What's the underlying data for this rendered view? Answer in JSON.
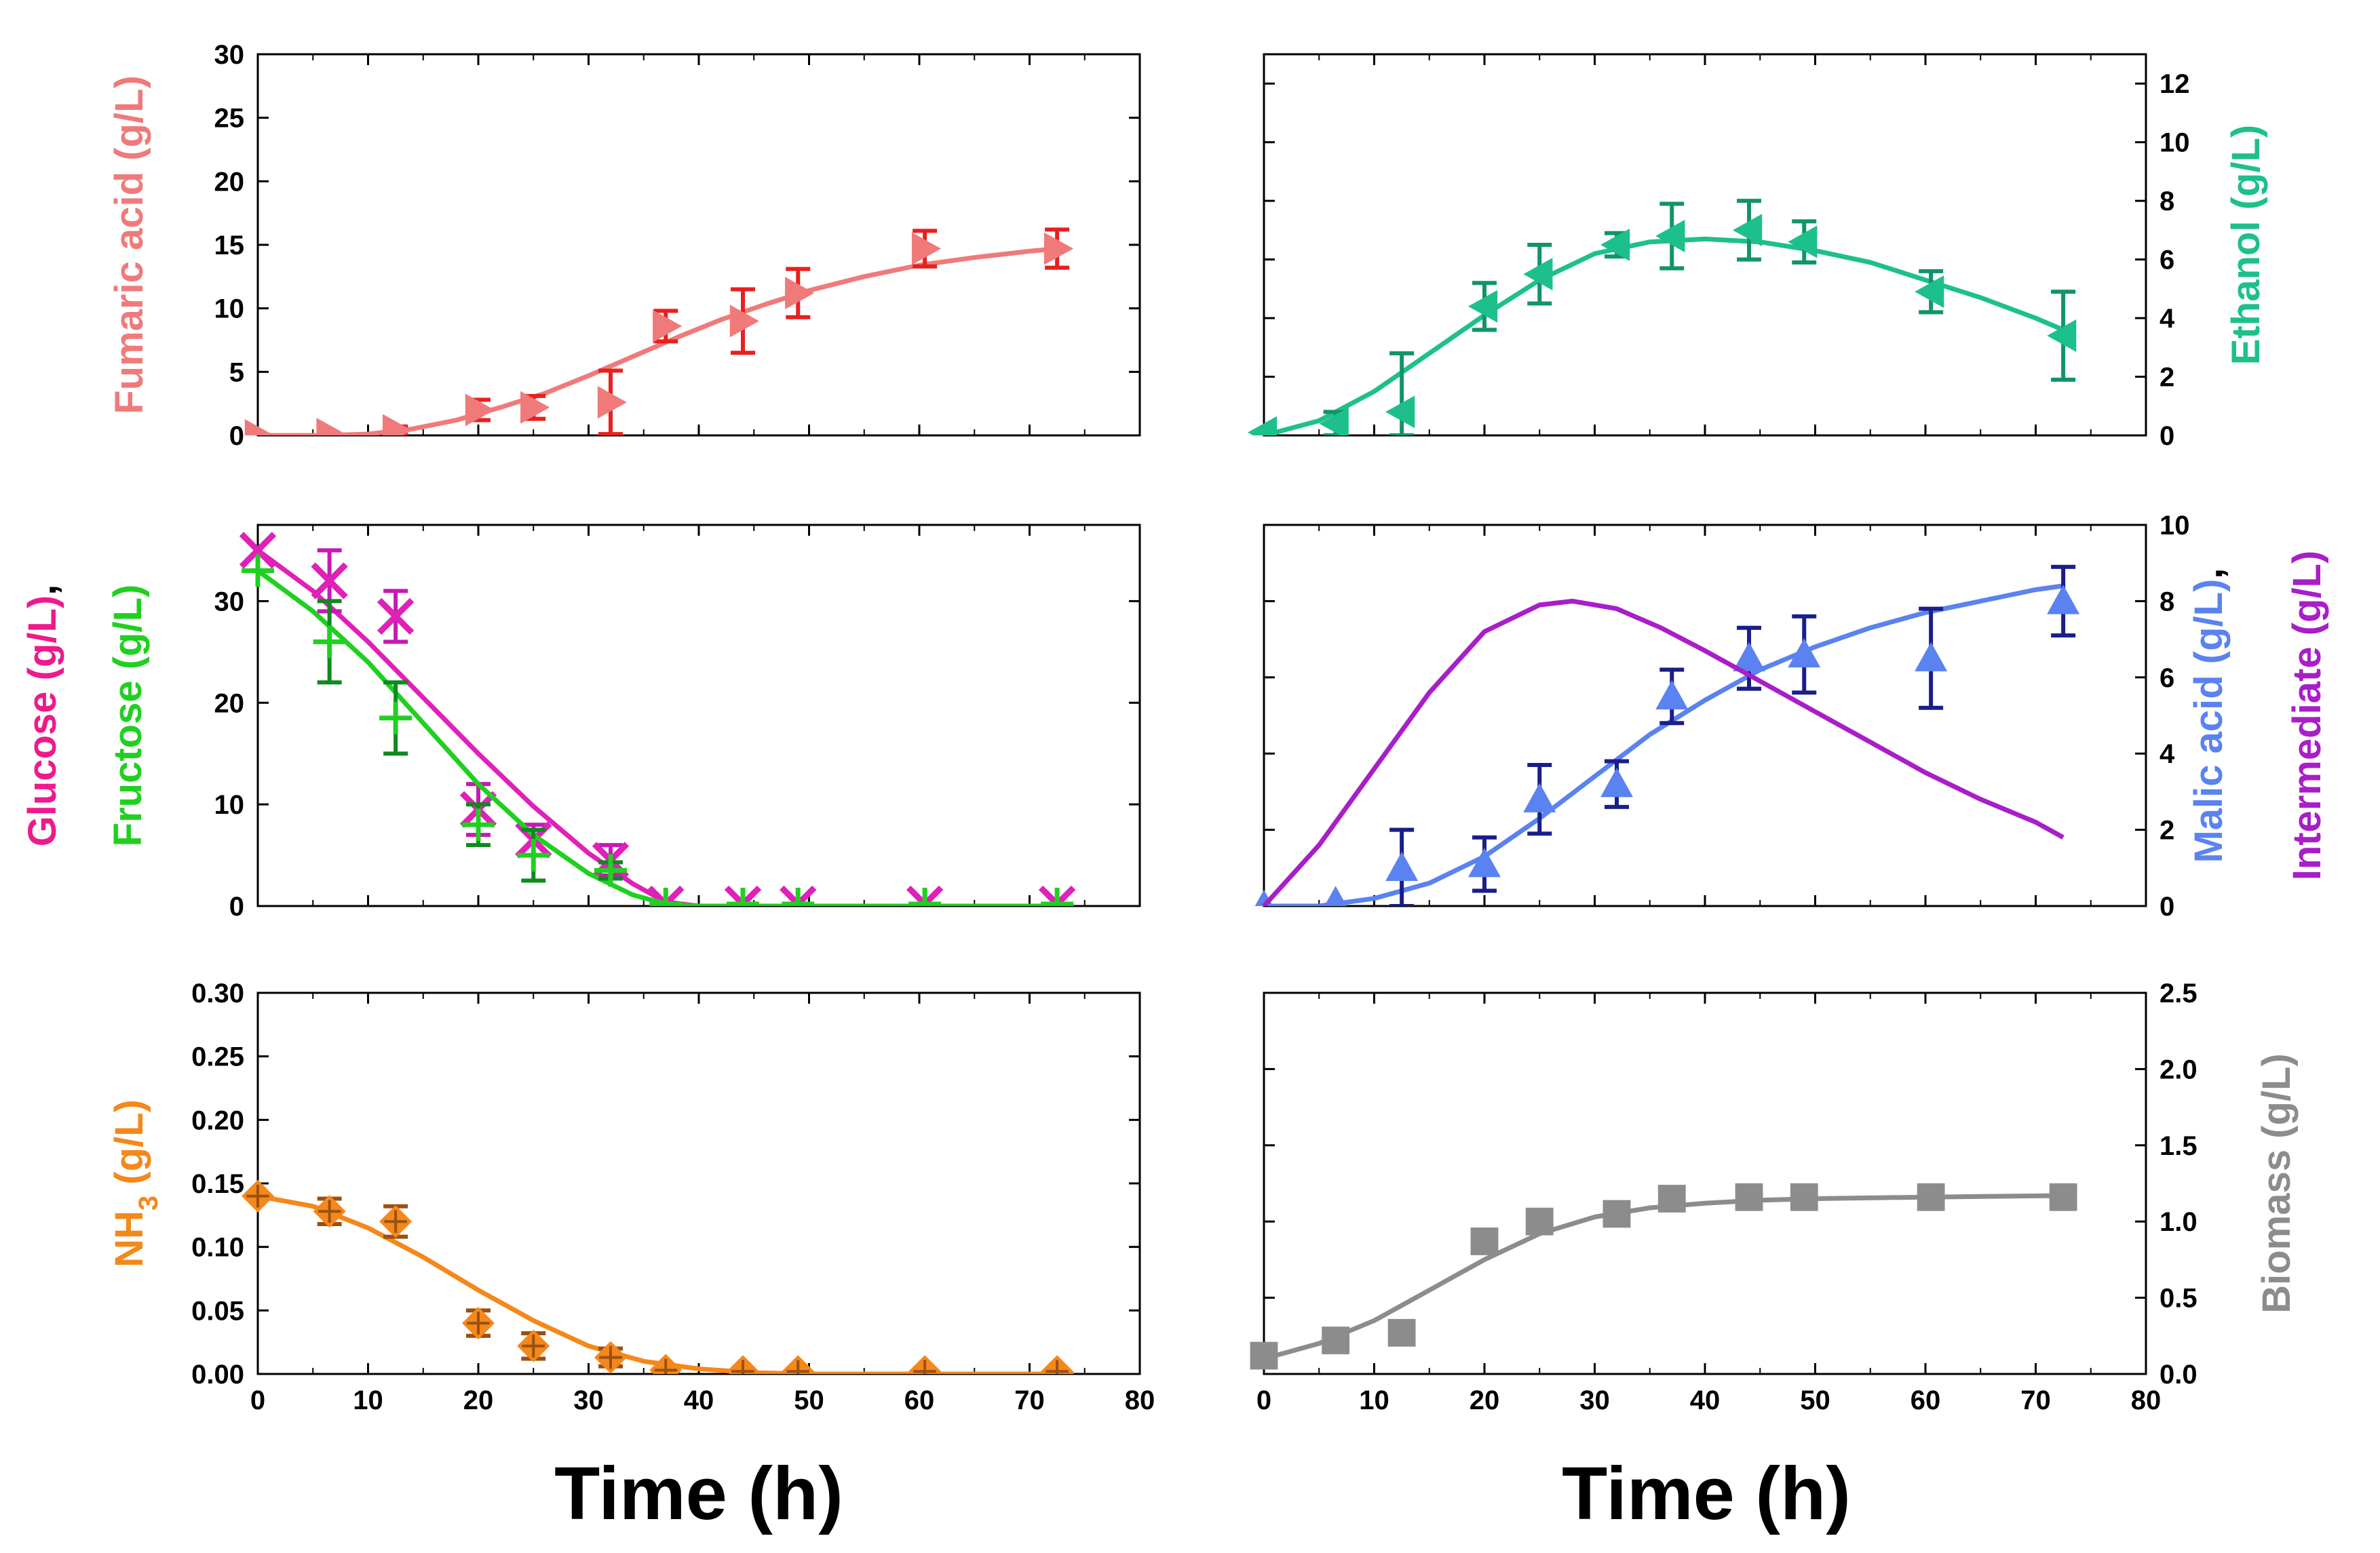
{
  "xlabel": "Time (h)",
  "chart_data": [
    {
      "id": "fumaric",
      "type": "scatter",
      "title": "",
      "xlabel": "Time (h)",
      "ylabel": "Fumaric acid (g/L)",
      "ylabel_color": "#f07a7a",
      "y_axis_side": "left",
      "xlim": [
        0,
        80
      ],
      "ylim": [
        0,
        30
      ],
      "y_ticks": [
        "0",
        "5",
        "10",
        "15",
        "20",
        "25",
        "30"
      ],
      "x_ticks": [
        "0",
        "10",
        "20",
        "30",
        "40",
        "50",
        "60",
        "70",
        "80"
      ],
      "series": [
        {
          "name": "Fumaric acid",
          "color": "#f07a7a",
          "errcolor": "#e8201f",
          "marker": "tri-right",
          "points": [
            [
              0,
              0,
              0
            ],
            [
              6.5,
              0.1,
              0
            ],
            [
              12.5,
              0.4,
              0.3
            ],
            [
              20,
              2,
              0.8
            ],
            [
              25,
              2.2,
              0.9
            ],
            [
              32,
              2.6,
              2.5
            ],
            [
              37,
              8.6,
              1.2
            ],
            [
              44,
              9,
              2.5
            ],
            [
              49,
              11.2,
              1.9
            ],
            [
              60.5,
              14.7,
              1.4
            ],
            [
              72.5,
              14.7,
              1.5
            ]
          ],
          "fit": [
            [
              0,
              0
            ],
            [
              6,
              0
            ],
            [
              10,
              0.1
            ],
            [
              14,
              0.5
            ],
            [
              18,
              1.2
            ],
            [
              22,
              2.2
            ],
            [
              26,
              3.3
            ],
            [
              30,
              4.7
            ],
            [
              34,
              6.2
            ],
            [
              38,
              7.7
            ],
            [
              42,
              9.1
            ],
            [
              46,
              10.3
            ],
            [
              50,
              11.4
            ],
            [
              55,
              12.5
            ],
            [
              60,
              13.4
            ],
            [
              65,
              14
            ],
            [
              70,
              14.5
            ],
            [
              72.5,
              14.7
            ]
          ]
        }
      ]
    },
    {
      "id": "ethanol",
      "type": "scatter",
      "title": "",
      "xlabel": "Time (h)",
      "ylabel": "Ethanol (g/L)",
      "ylabel_color": "#1dc08c",
      "y_axis_side": "right",
      "xlim": [
        0,
        80
      ],
      "ylim": [
        0,
        13
      ],
      "y_ticks": [
        "0",
        "2",
        "4",
        "6",
        "8",
        "10",
        "12"
      ],
      "x_ticks": [
        "0",
        "10",
        "20",
        "30",
        "40",
        "50",
        "60",
        "70",
        "80"
      ],
      "series": [
        {
          "name": "Ethanol",
          "color": "#1dc08c",
          "errcolor": "#11946b",
          "marker": "tri-left",
          "points": [
            [
              0,
              0.1,
              0
            ],
            [
              6.5,
              0.4,
              0.4
            ],
            [
              12.5,
              0.8,
              2
            ],
            [
              20,
              4.4,
              0.8
            ],
            [
              25,
              5.5,
              1
            ],
            [
              32,
              6.5,
              0.4
            ],
            [
              37,
              6.8,
              1.1
            ],
            [
              44,
              7,
              1
            ],
            [
              49,
              6.6,
              0.7
            ],
            [
              60.5,
              4.9,
              0.7
            ],
            [
              72.5,
              3.4,
              1.5
            ]
          ],
          "fit": [
            [
              0,
              0
            ],
            [
              5,
              0.5
            ],
            [
              10,
              1.5
            ],
            [
              15,
              2.8
            ],
            [
              20,
              4.1
            ],
            [
              25,
              5.3
            ],
            [
              30,
              6.2
            ],
            [
              35,
              6.6
            ],
            [
              40,
              6.7
            ],
            [
              45,
              6.6
            ],
            [
              50,
              6.3
            ],
            [
              55,
              5.9
            ],
            [
              60,
              5.3
            ],
            [
              65,
              4.7
            ],
            [
              70,
              4
            ],
            [
              72.5,
              3.6
            ]
          ]
        }
      ]
    },
    {
      "id": "sugars",
      "type": "scatter",
      "title": "",
      "xlabel": "Time (h)",
      "ylabel": "Glucose (g/L), Fructose (g/L)",
      "ylabel_parts": [
        {
          "text": "Glucose (g/L)",
          "color": "#ee1a8c"
        },
        {
          "text": ",",
          "color": "#000000"
        },
        {
          "text": "Fructose (g/L)",
          "color": "#20d020"
        }
      ],
      "y_axis_side": "left",
      "xlim": [
        0,
        80
      ],
      "ylim": [
        0,
        37.5
      ],
      "y_ticks": [
        "0",
        "10",
        "20",
        "30"
      ],
      "x_ticks": [
        "0",
        "10",
        "20",
        "30",
        "40",
        "50",
        "60",
        "70",
        "80"
      ],
      "series": [
        {
          "name": "Glucose",
          "color": "#e020b8",
          "errcolor": "#c51ab5",
          "marker": "x",
          "points": [
            [
              0,
              35,
              0
            ],
            [
              6.5,
              32,
              3
            ],
            [
              12.5,
              28.5,
              2.5
            ],
            [
              20,
              9.5,
              2.5
            ],
            [
              25,
              6.5,
              1.5
            ],
            [
              32,
              4.5,
              1.5
            ],
            [
              37,
              0.2,
              0
            ],
            [
              44,
              0.2,
              0
            ],
            [
              49,
              0.2,
              0
            ],
            [
              60.5,
              0.2,
              0
            ],
            [
              72.5,
              0.2,
              0
            ]
          ],
          "fit": [
            [
              0,
              35
            ],
            [
              5,
              31
            ],
            [
              10,
              26
            ],
            [
              15,
              20.5
            ],
            [
              20,
              15
            ],
            [
              25,
              9.8
            ],
            [
              30,
              5.2
            ],
            [
              34,
              2.2
            ],
            [
              37,
              0.4
            ],
            [
              40,
              0
            ],
            [
              74,
              0
            ]
          ]
        },
        {
          "name": "Fructose",
          "color": "#20d020",
          "errcolor": "#0e8a1e",
          "marker": "plus",
          "points": [
            [
              0,
              33,
              0
            ],
            [
              6.5,
              26,
              4
            ],
            [
              12.5,
              18.5,
              3.5
            ],
            [
              20,
              8,
              2
            ],
            [
              25,
              5,
              2.5
            ],
            [
              32,
              3.5,
              0.8
            ],
            [
              37,
              0.2,
              0
            ],
            [
              44,
              0.2,
              0
            ],
            [
              49,
              0.2,
              0
            ],
            [
              60.5,
              0.2,
              0
            ],
            [
              72.5,
              0.2,
              0
            ]
          ],
          "fit": [
            [
              0,
              33
            ],
            [
              5,
              29
            ],
            [
              10,
              24
            ],
            [
              15,
              18
            ],
            [
              20,
              12
            ],
            [
              25,
              7
            ],
            [
              30,
              3.2
            ],
            [
              34,
              1.1
            ],
            [
              37,
              0.2
            ],
            [
              40,
              0
            ],
            [
              74,
              0
            ]
          ]
        }
      ]
    },
    {
      "id": "malic",
      "type": "scatter",
      "title": "",
      "xlabel": "Time (h)",
      "ylabel": "Malic acid (g/L), Intermediate (g/L)",
      "ylabel_parts": [
        {
          "text": "Malic acid (g/L)",
          "color": "#5a82f0"
        },
        {
          "text": ",",
          "color": "#000000"
        },
        {
          "text": "Intermediate (g/L)",
          "color": "#a81ec8"
        }
      ],
      "y_axis_side": "right",
      "xlim": [
        0,
        80
      ],
      "ylim": [
        0,
        10
      ],
      "y_ticks": [
        "0",
        "2",
        "4",
        "6",
        "8",
        "10"
      ],
      "x_ticks": [
        "0",
        "10",
        "20",
        "30",
        "40",
        "50",
        "60",
        "70",
        "80"
      ],
      "series": [
        {
          "name": "Malic acid",
          "color": "#5a82f0",
          "errcolor": "#1a1e8a",
          "marker": "tri-up",
          "points": [
            [
              0,
              0,
              0
            ],
            [
              6.5,
              0.1,
              0
            ],
            [
              12.5,
              1,
              1
            ],
            [
              20,
              1.1,
              0.7
            ],
            [
              25,
              2.8,
              0.9
            ],
            [
              32,
              3.2,
              0.6
            ],
            [
              37,
              5.5,
              0.7
            ],
            [
              44,
              6.5,
              0.8
            ],
            [
              49,
              6.6,
              1
            ],
            [
              60.5,
              6.5,
              1.3
            ],
            [
              72.5,
              8,
              0.9
            ]
          ],
          "fit": [
            [
              0,
              0
            ],
            [
              5,
              0
            ],
            [
              10,
              0.2
            ],
            [
              15,
              0.6
            ],
            [
              20,
              1.3
            ],
            [
              25,
              2.3
            ],
            [
              30,
              3.4
            ],
            [
              35,
              4.5
            ],
            [
              40,
              5.4
            ],
            [
              45,
              6.2
            ],
            [
              50,
              6.8
            ],
            [
              55,
              7.3
            ],
            [
              60,
              7.7
            ],
            [
              65,
              8
            ],
            [
              70,
              8.3
            ],
            [
              72.5,
              8.4
            ]
          ]
        },
        {
          "name": "Intermediate",
          "color": "#a81ec8",
          "errcolor": "#a81ec8",
          "marker": "none",
          "points": [],
          "fit": [
            [
              0,
              0
            ],
            [
              5,
              1.6
            ],
            [
              10,
              3.6
            ],
            [
              15,
              5.6
            ],
            [
              20,
              7.2
            ],
            [
              25,
              7.9
            ],
            [
              28,
              8
            ],
            [
              32,
              7.8
            ],
            [
              36,
              7.3
            ],
            [
              40,
              6.7
            ],
            [
              45,
              5.9
            ],
            [
              50,
              5.1
            ],
            [
              55,
              4.3
            ],
            [
              60,
              3.5
            ],
            [
              65,
              2.8
            ],
            [
              70,
              2.2
            ],
            [
              72.5,
              1.8
            ]
          ]
        }
      ]
    },
    {
      "id": "nh3",
      "type": "scatter",
      "title": "",
      "xlabel": "Time (h)",
      "ylabel": "NH3 (g/L)",
      "ylabel_parts": [
        {
          "text": "NH",
          "color": "#f5881a"
        },
        {
          "text": "3",
          "color": "#f5881a",
          "sub": true
        },
        {
          "text": " (g/L)",
          "color": "#f5881a"
        }
      ],
      "y_axis_side": "left",
      "xlim": [
        0,
        80
      ],
      "ylim": [
        0,
        0.3
      ],
      "y_ticks": [
        "0.00",
        "0.05",
        "0.10",
        "0.15",
        "0.20",
        "0.25",
        "0.30"
      ],
      "x_ticks": [
        "0",
        "10",
        "20",
        "30",
        "40",
        "50",
        "60",
        "70",
        "80"
      ],
      "show_x_tick_labels": true,
      "series": [
        {
          "name": "NH3",
          "color": "#f5881a",
          "errcolor": "#9a5012",
          "marker": "diamond-plus",
          "points": [
            [
              0,
              0.14,
              0
            ],
            [
              6.5,
              0.128,
              0.01
            ],
            [
              12.5,
              0.12,
              0.012
            ],
            [
              20,
              0.04,
              0.01
            ],
            [
              25,
              0.022,
              0.01
            ],
            [
              32,
              0.013,
              0.007
            ],
            [
              37,
              0.003,
              0
            ],
            [
              44,
              0.002,
              0
            ],
            [
              49,
              0.002,
              0
            ],
            [
              60.5,
              0.002,
              0
            ],
            [
              72.5,
              0.002,
              0
            ]
          ],
          "fit": [
            [
              0,
              0.14
            ],
            [
              5,
              0.132
            ],
            [
              10,
              0.115
            ],
            [
              15,
              0.092
            ],
            [
              20,
              0.066
            ],
            [
              25,
              0.042
            ],
            [
              30,
              0.022
            ],
            [
              35,
              0.01
            ],
            [
              40,
              0.004
            ],
            [
              45,
              0.001
            ],
            [
              50,
              0
            ],
            [
              74,
              0
            ]
          ]
        }
      ]
    },
    {
      "id": "biomass",
      "type": "scatter",
      "title": "",
      "xlabel": "Time (h)",
      "ylabel": "Biomass (g/L)",
      "ylabel_color": "#8c8c8c",
      "y_axis_side": "right",
      "xlim": [
        0,
        80
      ],
      "ylim": [
        0,
        2.5
      ],
      "y_ticks": [
        "0.0",
        "0.5",
        "1.0",
        "1.5",
        "2.0",
        "2.5"
      ],
      "x_ticks": [
        "0",
        "10",
        "20",
        "30",
        "40",
        "50",
        "60",
        "70",
        "80"
      ],
      "show_x_tick_labels": true,
      "series": [
        {
          "name": "Biomass",
          "color": "#8c8c8c",
          "errcolor": "#8c8c8c",
          "marker": "square",
          "points": [
            [
              0,
              0.12,
              0
            ],
            [
              6.5,
              0.22,
              0
            ],
            [
              12.5,
              0.27,
              0
            ],
            [
              20,
              0.87,
              0
            ],
            [
              25,
              1,
              0
            ],
            [
              32,
              1.05,
              0
            ],
            [
              37,
              1.15,
              0
            ],
            [
              44,
              1.16,
              0
            ],
            [
              49,
              1.16,
              0
            ],
            [
              60.5,
              1.16,
              0
            ],
            [
              72.5,
              1.16,
              0
            ]
          ],
          "fit": [
            [
              0,
              0.1
            ],
            [
              5,
              0.2
            ],
            [
              10,
              0.35
            ],
            [
              15,
              0.55
            ],
            [
              20,
              0.75
            ],
            [
              25,
              0.92
            ],
            [
              30,
              1.03
            ],
            [
              35,
              1.09
            ],
            [
              40,
              1.12
            ],
            [
              45,
              1.14
            ],
            [
              50,
              1.15
            ],
            [
              60,
              1.16
            ],
            [
              72.5,
              1.17
            ]
          ]
        }
      ]
    }
  ]
}
